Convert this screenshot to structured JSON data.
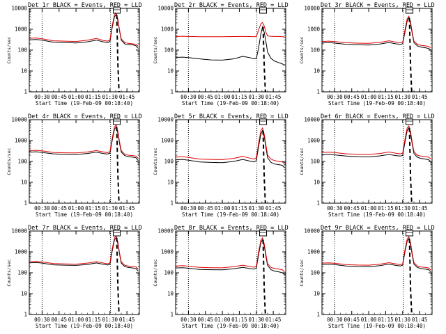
{
  "figure": {
    "colors": {
      "events": "#000000",
      "lld": "#e00000",
      "background": "#ffffff",
      "axes": "#000000"
    },
    "shared": {
      "type": "line",
      "xlabel": "Start Time (19-Feb-09 00:18:40)",
      "ylabel": "Counts/sec",
      "x_ticks": [
        "00:30",
        "00:45",
        "01:00",
        "01:15",
        "01:30",
        "01:45"
      ],
      "x_tick_minutes": [
        30,
        45,
        60,
        75,
        90,
        105
      ],
      "xlim_minutes": [
        18.67,
        116
      ],
      "y_ticks": [
        "1",
        "10",
        "100",
        "1000",
        "10000"
      ],
      "ylim": [
        1,
        10000
      ],
      "y_scale": "log",
      "vlines_dotted_minutes": [
        30,
        90.5
      ],
      "vline_dashed_minutes": [
        96
      ],
      "box_marker_minute": 96
    }
  },
  "chart_data": [
    {
      "type": "line",
      "title": "Det 1r BLACK = Events, RED = LLD",
      "series": [
        {
          "name": "BLACK = Events",
          "color": "#000000",
          "x": [
            19,
            25,
            30,
            40,
            50,
            60,
            70,
            78,
            84,
            88,
            90,
            92,
            94,
            95.5,
            97,
            98.5,
            100,
            103,
            106,
            110,
            113,
            115
          ],
          "y": [
            310,
            320,
            300,
            240,
            230,
            220,
            250,
            300,
            250,
            230,
            260,
            1200,
            4000,
            5000,
            2500,
            800,
            300,
            200,
            180,
            180,
            160,
            120
          ]
        },
        {
          "name": "RED = LLD",
          "color": "#e00000",
          "x": [
            19,
            25,
            30,
            40,
            50,
            60,
            70,
            78,
            84,
            88,
            90,
            92,
            94,
            95.5,
            97,
            98.5,
            100,
            103,
            106,
            110,
            113,
            115
          ],
          "y": [
            370,
            380,
            350,
            280,
            270,
            260,
            300,
            360,
            290,
            270,
            310,
            1500,
            5000,
            6000,
            3000,
            900,
            350,
            230,
            210,
            200,
            190,
            150
          ]
        }
      ],
      "dashed_drop": {
        "x": [
          96,
          97,
          98
        ],
        "y": [
          5000,
          20,
          1
        ]
      }
    },
    {
      "type": "line",
      "title": "Det 2r BLACK = Events, RED = LLD",
      "series": [
        {
          "name": "BLACK = Events",
          "color": "#000000",
          "x": [
            19,
            25,
            30,
            40,
            50,
            60,
            70,
            78,
            84,
            88,
            90,
            92,
            94,
            95.5,
            97,
            98.5,
            100,
            103,
            106,
            110,
            113,
            115
          ],
          "y": [
            45,
            46,
            44,
            38,
            34,
            33,
            38,
            50,
            44,
            38,
            40,
            120,
            600,
            1300,
            700,
            250,
            80,
            40,
            30,
            25,
            22,
            18
          ]
        },
        {
          "name": "RED = LLD",
          "color": "#e00000",
          "x": [
            19,
            25,
            30,
            40,
            50,
            60,
            70,
            78,
            84,
            88,
            90,
            92,
            94,
            95.5,
            97,
            98.5,
            100,
            103,
            106,
            110,
            113,
            115
          ],
          "y": [
            450,
            460,
            450,
            440,
            440,
            440,
            445,
            450,
            445,
            440,
            445,
            900,
            1800,
            2100,
            1400,
            700,
            480,
            460,
            450,
            450,
            440,
            430
          ]
        }
      ],
      "dashed_drop": {
        "x": [
          96,
          97,
          98
        ],
        "y": [
          1300,
          15,
          1
        ]
      }
    },
    {
      "type": "line",
      "title": "Det 3r BLACK = Events, RED = LLD",
      "series": [
        {
          "name": "BLACK = Events",
          "color": "#000000",
          "x": [
            19,
            25,
            30,
            40,
            50,
            60,
            70,
            78,
            84,
            88,
            90,
            92,
            94,
            95.5,
            97,
            98.5,
            100,
            103,
            106,
            110,
            113,
            115
          ],
          "y": [
            220,
            230,
            215,
            190,
            180,
            175,
            195,
            230,
            200,
            190,
            200,
            700,
            2500,
            3500,
            1800,
            600,
            230,
            160,
            140,
            130,
            120,
            100
          ]
        },
        {
          "name": "RED = LLD",
          "color": "#e00000",
          "x": [
            19,
            25,
            30,
            40,
            50,
            60,
            70,
            78,
            84,
            88,
            90,
            92,
            94,
            95.5,
            97,
            98.5,
            100,
            103,
            106,
            110,
            113,
            115
          ],
          "y": [
            260,
            270,
            255,
            225,
            215,
            210,
            235,
            280,
            240,
            225,
            240,
            900,
            3200,
            4200,
            2200,
            700,
            270,
            190,
            170,
            160,
            150,
            130
          ]
        }
      ],
      "dashed_drop": {
        "x": [
          96,
          97,
          98
        ],
        "y": [
          3500,
          15,
          1
        ]
      }
    },
    {
      "type": "line",
      "title": "Det 4r BLACK = Events, RED = LLD",
      "series": [
        {
          "name": "BLACK = Events",
          "color": "#000000",
          "x": [
            19,
            25,
            30,
            40,
            50,
            60,
            70,
            78,
            84,
            88,
            90,
            92,
            94,
            95.5,
            97,
            98.5,
            100,
            103,
            106,
            110,
            113,
            115
          ],
          "y": [
            280,
            290,
            270,
            230,
            220,
            215,
            240,
            280,
            240,
            225,
            250,
            1000,
            3500,
            4500,
            2200,
            700,
            280,
            190,
            170,
            160,
            150,
            110
          ]
        },
        {
          "name": "RED = LLD",
          "color": "#e00000",
          "x": [
            19,
            25,
            30,
            40,
            50,
            60,
            70,
            78,
            84,
            88,
            90,
            92,
            94,
            95.5,
            97,
            98.5,
            100,
            103,
            106,
            110,
            113,
            115
          ],
          "y": [
            330,
            340,
            320,
            270,
            260,
            255,
            285,
            330,
            285,
            265,
            295,
            1300,
            4500,
            5500,
            2800,
            850,
            330,
            220,
            200,
            190,
            180,
            140
          ]
        }
      ],
      "dashed_drop": {
        "x": [
          96,
          97,
          98
        ],
        "y": [
          4500,
          20,
          1
        ]
      }
    },
    {
      "type": "line",
      "title": "Det 5r BLACK = Events, RED = LLD",
      "series": [
        {
          "name": "BLACK = Events",
          "color": "#000000",
          "x": [
            19,
            25,
            30,
            40,
            50,
            60,
            70,
            78,
            84,
            88,
            90,
            92,
            94,
            95.5,
            97,
            98.5,
            100,
            103,
            106,
            110,
            113,
            115
          ],
          "y": [
            120,
            125,
            115,
            95,
            90,
            88,
            100,
            125,
            105,
            95,
            110,
            500,
            2000,
            3000,
            1500,
            450,
            150,
            90,
            75,
            70,
            65,
            50
          ]
        },
        {
          "name": "RED = LLD",
          "color": "#e00000",
          "x": [
            19,
            25,
            30,
            40,
            50,
            60,
            70,
            78,
            84,
            88,
            90,
            92,
            94,
            95.5,
            97,
            98.5,
            100,
            103,
            106,
            110,
            113,
            115
          ],
          "y": [
            160,
            170,
            155,
            130,
            125,
            122,
            140,
            175,
            145,
            130,
            150,
            700,
            3000,
            4000,
            2000,
            600,
            200,
            130,
            110,
            100,
            95,
            80
          ]
        }
      ],
      "dashed_drop": {
        "x": [
          96,
          97,
          98
        ],
        "y": [
          3000,
          15,
          1
        ]
      }
    },
    {
      "type": "line",
      "title": "Det 6r BLACK = Events, RED = LLD",
      "series": [
        {
          "name": "BLACK = Events",
          "color": "#000000",
          "x": [
            19,
            25,
            30,
            40,
            50,
            60,
            70,
            78,
            84,
            88,
            90,
            92,
            94,
            95.5,
            97,
            98.5,
            100,
            103,
            106,
            110,
            113,
            115
          ],
          "y": [
            210,
            220,
            205,
            180,
            170,
            165,
            185,
            215,
            190,
            180,
            195,
            800,
            3000,
            4000,
            2000,
            650,
            240,
            160,
            140,
            130,
            120,
            95
          ]
        },
        {
          "name": "RED = LLD",
          "color": "#e00000",
          "x": [
            19,
            25,
            30,
            40,
            50,
            60,
            70,
            78,
            84,
            88,
            90,
            92,
            94,
            95.5,
            97,
            98.5,
            100,
            103,
            106,
            110,
            113,
            115
          ],
          "y": [
            270,
            280,
            265,
            230,
            220,
            215,
            240,
            285,
            245,
            230,
            250,
            1100,
            4000,
            5000,
            2600,
            800,
            300,
            200,
            180,
            170,
            160,
            130
          ]
        }
      ],
      "dashed_drop": {
        "x": [
          96,
          97,
          98
        ],
        "y": [
          4000,
          15,
          1
        ]
      }
    },
    {
      "type": "line",
      "title": "Det 7r BLACK = Events, RED = LLD",
      "series": [
        {
          "name": "BLACK = Events",
          "color": "#000000",
          "x": [
            19,
            25,
            30,
            40,
            50,
            60,
            70,
            78,
            84,
            88,
            90,
            92,
            94,
            95.5,
            97,
            98.5,
            100,
            103,
            106,
            110,
            113,
            115
          ],
          "y": [
            300,
            310,
            290,
            240,
            230,
            225,
            250,
            295,
            255,
            235,
            260,
            1100,
            3800,
            4800,
            2400,
            750,
            290,
            200,
            180,
            170,
            160,
            120
          ]
        },
        {
          "name": "RED = LLD",
          "color": "#e00000",
          "x": [
            19,
            25,
            30,
            40,
            50,
            60,
            70,
            78,
            84,
            88,
            90,
            92,
            94,
            95.5,
            97,
            98.5,
            100,
            103,
            106,
            110,
            113,
            115
          ],
          "y": [
            340,
            350,
            330,
            275,
            265,
            260,
            290,
            340,
            295,
            270,
            300,
            1400,
            4700,
            5800,
            2900,
            880,
            340,
            230,
            210,
            200,
            190,
            150
          ]
        }
      ],
      "dashed_drop": {
        "x": [
          96,
          97,
          98
        ],
        "y": [
          4800,
          20,
          1
        ]
      }
    },
    {
      "type": "line",
      "title": "Det 8r BLACK = Events, RED = LLD",
      "series": [
        {
          "name": "BLACK = Events",
          "color": "#000000",
          "x": [
            19,
            25,
            30,
            40,
            50,
            60,
            70,
            78,
            84,
            88,
            90,
            92,
            94,
            95.5,
            97,
            98.5,
            100,
            103,
            106,
            110,
            113,
            115
          ],
          "y": [
            170,
            175,
            165,
            145,
            140,
            138,
            155,
            180,
            160,
            150,
            165,
            700,
            2800,
            3800,
            1900,
            600,
            220,
            140,
            120,
            110,
            100,
            80
          ]
        },
        {
          "name": "RED = LLD",
          "color": "#e00000",
          "x": [
            19,
            25,
            30,
            40,
            50,
            60,
            70,
            78,
            84,
            88,
            90,
            92,
            94,
            95.5,
            97,
            98.5,
            100,
            103,
            106,
            110,
            113,
            115
          ],
          "y": [
            210,
            220,
            205,
            180,
            175,
            172,
            195,
            230,
            200,
            185,
            205,
            950,
            3600,
            4700,
            2400,
            750,
            270,
            180,
            160,
            150,
            140,
            110
          ]
        }
      ],
      "dashed_drop": {
        "x": [
          96,
          97,
          98
        ],
        "y": [
          3800,
          15,
          1
        ]
      }
    },
    {
      "type": "line",
      "title": "Det 9r BLACK = Events, RED = LLD",
      "series": [
        {
          "name": "BLACK = Events",
          "color": "#000000",
          "x": [
            19,
            25,
            30,
            40,
            50,
            60,
            70,
            78,
            84,
            88,
            90,
            92,
            94,
            95.5,
            97,
            98.5,
            100,
            103,
            106,
            110,
            113,
            115
          ],
          "y": [
            250,
            260,
            245,
            210,
            200,
            195,
            220,
            260,
            225,
            210,
            230,
            950,
            3300,
            4300,
            2100,
            680,
            260,
            180,
            160,
            150,
            140,
            110
          ]
        },
        {
          "name": "RED = LLD",
          "color": "#e00000",
          "x": [
            19,
            25,
            30,
            40,
            50,
            60,
            70,
            78,
            84,
            88,
            90,
            92,
            94,
            95.5,
            97,
            98.5,
            100,
            103,
            106,
            110,
            113,
            115
          ],
          "y": [
            290,
            300,
            285,
            245,
            235,
            230,
            260,
            305,
            265,
            245,
            270,
            1200,
            4200,
            5300,
            2700,
            820,
            310,
            210,
            190,
            180,
            170,
            135
          ]
        }
      ],
      "dashed_drop": {
        "x": [
          96,
          97,
          98
        ],
        "y": [
          4300,
          15,
          1
        ]
      }
    }
  ]
}
